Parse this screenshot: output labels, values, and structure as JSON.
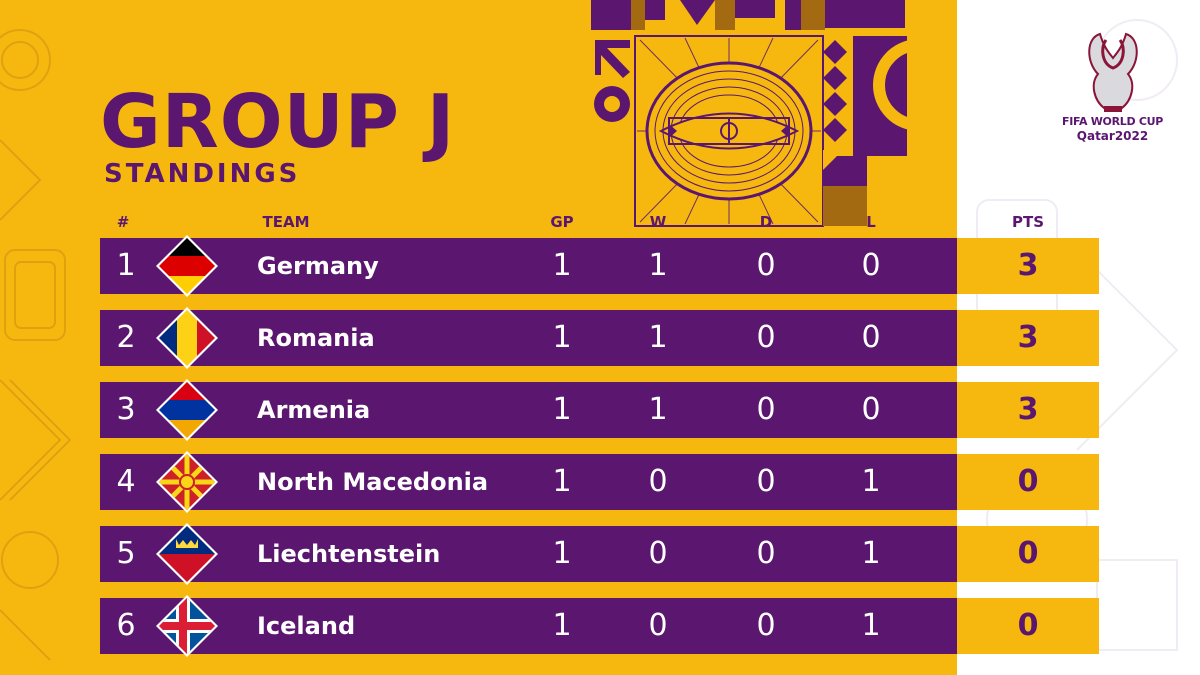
{
  "header": {
    "title": "GROUP J",
    "subtitle": "STANDINGS"
  },
  "columns": {
    "rank": "#",
    "team": "TEAM",
    "gp": "GP",
    "w": "W",
    "d": "D",
    "l": "L",
    "pts": "PTS"
  },
  "standings": [
    {
      "rank": "1",
      "team": "Germany",
      "flag_icon": "germany-flag-icon",
      "gp": "1",
      "w": "1",
      "d": "0",
      "l": "0",
      "pts": "3"
    },
    {
      "rank": "2",
      "team": "Romania",
      "flag_icon": "romania-flag-icon",
      "gp": "1",
      "w": "1",
      "d": "0",
      "l": "0",
      "pts": "3"
    },
    {
      "rank": "3",
      "team": "Armenia",
      "flag_icon": "armenia-flag-icon",
      "gp": "1",
      "w": "1",
      "d": "0",
      "l": "0",
      "pts": "3"
    },
    {
      "rank": "4",
      "team": "North Macedonia",
      "flag_icon": "north-macedonia-flag-icon",
      "gp": "1",
      "w": "0",
      "d": "0",
      "l": "1",
      "pts": "0"
    },
    {
      "rank": "5",
      "team": "Liechtenstein",
      "flag_icon": "liechtenstein-flag-icon",
      "gp": "1",
      "w": "0",
      "d": "0",
      "l": "1",
      "pts": "0"
    },
    {
      "rank": "6",
      "team": "Iceland",
      "flag_icon": "iceland-flag-icon",
      "gp": "1",
      "w": "0",
      "d": "0",
      "l": "1",
      "pts": "0"
    }
  ],
  "logo": {
    "line1": "FIFA WORLD CUP",
    "line2": "Qatar2022",
    "icon": "world-cup-trophy-icon"
  },
  "colors": {
    "purple": "#5b1670",
    "yellow": "#f6b80f",
    "white": "#ffffff"
  }
}
